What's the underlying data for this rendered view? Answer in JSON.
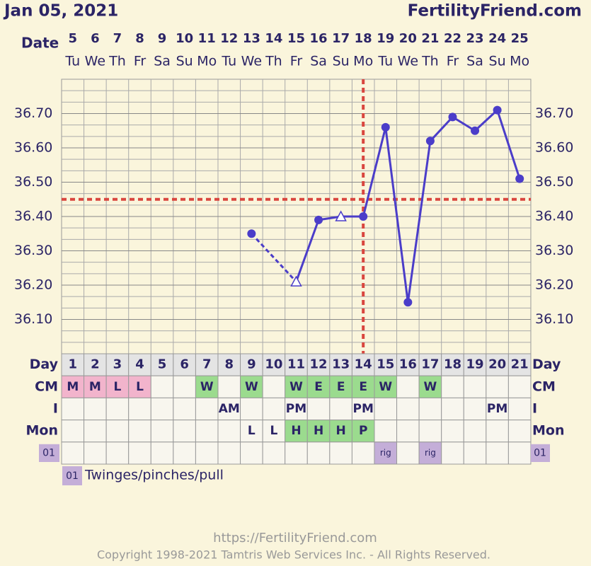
{
  "header": {
    "title": "Jan 05, 2021",
    "site": "FertilityFriend.com"
  },
  "chart_data": {
    "type": "line",
    "date_label": "Date",
    "dates": [
      "5",
      "6",
      "7",
      "8",
      "9",
      "10",
      "11",
      "12",
      "13",
      "14",
      "15",
      "16",
      "17",
      "18",
      "19",
      "20",
      "21",
      "22",
      "23",
      "24",
      "25"
    ],
    "weekdays": [
      "Tu",
      "We",
      "Th",
      "Fr",
      "Sa",
      "Su",
      "Mo",
      "Tu",
      "We",
      "Th",
      "Fr",
      "Sa",
      "Su",
      "Mo",
      "Tu",
      "We",
      "Th",
      "Fr",
      "Sa",
      "Su",
      "Mo"
    ],
    "ylim": [
      36.0,
      36.8
    ],
    "yticks": [
      {
        "value": 36.1,
        "label": "36.10"
      },
      {
        "value": 36.2,
        "label": "36.20"
      },
      {
        "value": 36.3,
        "label": "36.30"
      },
      {
        "value": 36.4,
        "label": "36.40"
      },
      {
        "value": 36.5,
        "label": "36.50"
      },
      {
        "value": 36.6,
        "label": "36.60"
      },
      {
        "value": 36.7,
        "label": "36.70"
      }
    ],
    "grid": true,
    "series": [
      {
        "color": "#4b3dc9",
        "values": [
          null,
          null,
          null,
          null,
          null,
          null,
          null,
          null,
          36.35,
          null,
          36.21,
          36.39,
          36.4,
          36.4,
          36.66,
          36.15,
          36.62,
          36.69,
          36.65,
          36.71,
          36.51
        ],
        "markers": [
          null,
          null,
          null,
          null,
          null,
          null,
          null,
          null,
          "circle",
          null,
          "triangle",
          "circle",
          "triangle",
          "circle",
          "circle",
          "circle",
          "circle",
          "circle",
          "circle",
          "circle",
          "circle"
        ]
      }
    ],
    "coverline": 36.45,
    "ovulation_date": "18",
    "marker_line_color": "#d9463f"
  },
  "table": {
    "day_label": "Day",
    "days": [
      "1",
      "2",
      "3",
      "4",
      "5",
      "6",
      "7",
      "8",
      "9",
      "10",
      "11",
      "12",
      "13",
      "14",
      "15",
      "16",
      "17",
      "18",
      "19",
      "20",
      "21"
    ],
    "rows": [
      {
        "label": "CM",
        "cells": [
          "M",
          "M",
          "L",
          "L",
          null,
          null,
          "W",
          null,
          "W",
          null,
          "W",
          "E",
          "E",
          "E",
          "W",
          null,
          "W",
          null,
          null,
          null,
          null
        ],
        "highlight": {
          "M": "#f2b4cc",
          "L": "#f2b4cc",
          "W": "#9bdb8e",
          "E": "#9bdb8e"
        }
      },
      {
        "label": "I",
        "cells": [
          null,
          null,
          null,
          null,
          null,
          null,
          null,
          "AM",
          null,
          null,
          "PM",
          null,
          null,
          "PM",
          null,
          null,
          null,
          null,
          null,
          "PM",
          null
        ],
        "highlight": {}
      },
      {
        "label": "Mon",
        "cells": [
          null,
          null,
          null,
          null,
          null,
          null,
          null,
          null,
          "L",
          "L",
          "H",
          "H",
          "H",
          "P",
          null,
          null,
          null,
          null,
          null,
          null,
          null
        ],
        "highlight": {
          "H": "#9bdb8e",
          "P": "#9bdb8e"
        }
      },
      {
        "label": "01",
        "label_color": "#c4aed8",
        "cells": [
          null,
          null,
          null,
          null,
          null,
          null,
          null,
          null,
          null,
          null,
          null,
          null,
          null,
          null,
          "rig",
          null,
          "rig",
          null,
          null,
          null,
          null
        ],
        "highlight": {
          "rig": "#c4aed8"
        }
      }
    ]
  },
  "legend": {
    "code": "01",
    "text": "Twinges/pinches/pull",
    "color": "#c4aed8"
  },
  "footer": {
    "url": "https://FertilityFriend.com",
    "copyright": "Copyright 1998-2021 Tamtris Web Services Inc. - All Rights Reserved."
  }
}
